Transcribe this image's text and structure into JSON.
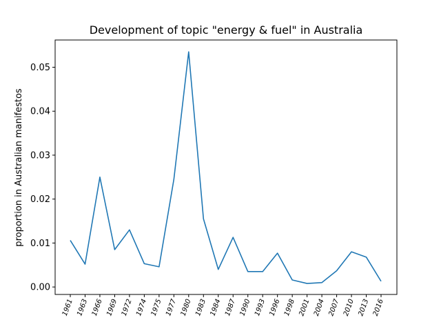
{
  "chart_data": {
    "type": "line",
    "title": "Development of topic \"energy & fuel\" in Australia",
    "xlabel": "",
    "ylabel": "proportion in Australian manifestos",
    "categories": [
      "1961",
      "1963",
      "1966",
      "1969",
      "1972",
      "1974",
      "1975",
      "1977",
      "1980",
      "1983",
      "1984",
      "1987",
      "1990",
      "1993",
      "1996",
      "1998",
      "2001",
      "2004",
      "2007",
      "2010",
      "2013",
      "2016"
    ],
    "series": [
      {
        "values": [
          0.0106,
          0.0052,
          0.025,
          0.0085,
          0.013,
          0.0053,
          0.0046,
          0.0245,
          0.0535,
          0.0155,
          0.004,
          0.0113,
          0.0035,
          0.0035,
          0.0077,
          0.0016,
          0.0008,
          0.001,
          0.0037,
          0.008,
          0.0068,
          0.0013
        ]
      }
    ],
    "yticks": [
      "0.00",
      "0.01",
      "0.02",
      "0.03",
      "0.04",
      "0.05"
    ],
    "ylim": [
      -0.0017,
      0.0562
    ],
    "grid": false,
    "line_color": "#1f77b4"
  }
}
